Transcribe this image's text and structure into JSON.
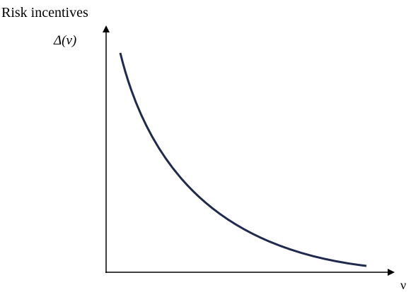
{
  "title": "Risk incentives",
  "y_axis_label": "Δ(v)",
  "x_axis_label": "ν"
}
